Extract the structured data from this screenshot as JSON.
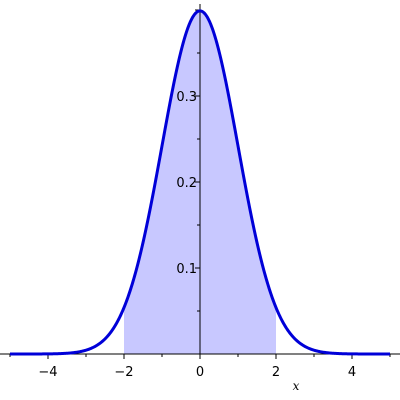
{
  "chart_data": {
    "type": "area",
    "title": "",
    "xlabel": "x",
    "ylabel": "",
    "xlim": [
      -5,
      5
    ],
    "ylim": [
      0,
      0.4
    ],
    "x_ticks": [
      -4,
      -2,
      0,
      2,
      4
    ],
    "x_tick_labels": [
      "−4",
      "−2",
      "0",
      "2",
      "4"
    ],
    "y_ticks": [
      0.1,
      0.2,
      0.3
    ],
    "y_tick_labels": [
      "0.1",
      "0.2",
      "0.3"
    ],
    "grid": false,
    "curve": {
      "x": [
        -5,
        -4.5,
        -4,
        -3.5,
        -3,
        -2.5,
        -2,
        -1.75,
        -1.5,
        -1.25,
        -1,
        -0.75,
        -0.5,
        -0.25,
        0,
        0.25,
        0.5,
        0.75,
        1,
        1.25,
        1.5,
        1.75,
        2,
        2.5,
        3,
        3.5,
        4,
        4.5,
        5
      ],
      "y": [
        1.5e-06,
        1.6e-05,
        0.000134,
        0.000873,
        0.004432,
        0.017528,
        0.053991,
        0.086277,
        0.129518,
        0.182649,
        0.241971,
        0.301137,
        0.352065,
        0.386668,
        0.398942,
        0.386668,
        0.352065,
        0.301137,
        0.241971,
        0.182649,
        0.129518,
        0.086277,
        0.053991,
        0.017528,
        0.004432,
        0.000873,
        0.000134,
        1.6e-05,
        1.5e-06
      ],
      "color": "#0000d8"
    },
    "shaded_region": {
      "x_from": -2,
      "x_to": 2,
      "color": "#c8c8ff"
    }
  }
}
